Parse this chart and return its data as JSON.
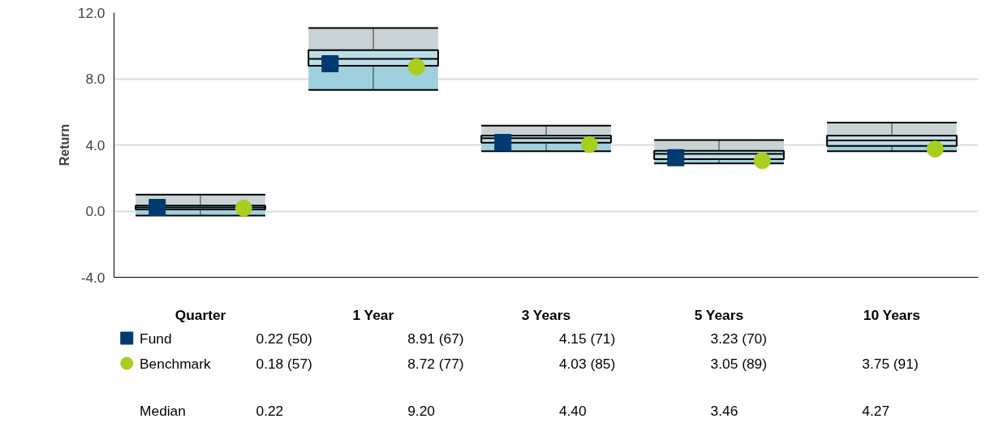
{
  "chart_data": {
    "type": "box",
    "ylabel": "Return",
    "categories": [
      "Quarter",
      "1 Year",
      "3 Years",
      "5 Years",
      "10 Years"
    ],
    "ylim": [
      -4,
      12
    ],
    "yticks": [
      {
        "value": -4,
        "label": "-4.0"
      },
      {
        "value": 0,
        "label": "0.0"
      },
      {
        "value": 4,
        "label": "4.0"
      },
      {
        "value": 8,
        "label": "8.0"
      },
      {
        "value": 12,
        "label": "12.0"
      }
    ],
    "grid": "y",
    "legend": "bottom",
    "annotations": [
      "Median"
    ],
    "series": [
      {
        "color": "#9fd0dd",
        "value_labels": [
          "0.22",
          "9.20",
          "4.40",
          "3.46",
          "4.27"
        ],
        "boxes": [
          {
            "low": -0.27,
            "q1": 0.1,
            "median": 0.22,
            "q3": 0.33,
            "high": 1.0
          },
          {
            "low": 7.33,
            "q1": 8.79,
            "median": 9.2,
            "q3": 9.73,
            "high": 11.07
          },
          {
            "low": 3.62,
            "q1": 4.13,
            "median": 4.4,
            "q3": 4.57,
            "high": 5.17
          },
          {
            "low": 2.88,
            "q1": 3.14,
            "median": 3.46,
            "q3": 3.64,
            "high": 4.29
          },
          {
            "low": 3.62,
            "q1": 3.94,
            "median": 4.27,
            "q3": 4.57,
            "high": 5.35
          }
        ]
      },
      {
        "name": "Fund",
        "type": "scatter",
        "marker": "square",
        "color": "#003a70",
        "values": [
          0.22,
          8.91,
          4.15,
          3.23,
          null
        ],
        "value_labels": [
          "0.22   (50)",
          "8.91   (67)",
          "4.15   (71)",
          "3.23   (70)",
          null
        ]
      },
      {
        "name": "Benchmark",
        "type": "scatter",
        "marker": "circle",
        "color": "#a8cf1e",
        "values": [
          0.18,
          8.72,
          4.03,
          3.05,
          3.75
        ],
        "value_labels": [
          "0.18   (57)",
          "8.72   (77)",
          "4.03   (85)",
          "3.05   (89)",
          "3.75   (91)"
        ]
      }
    ]
  }
}
